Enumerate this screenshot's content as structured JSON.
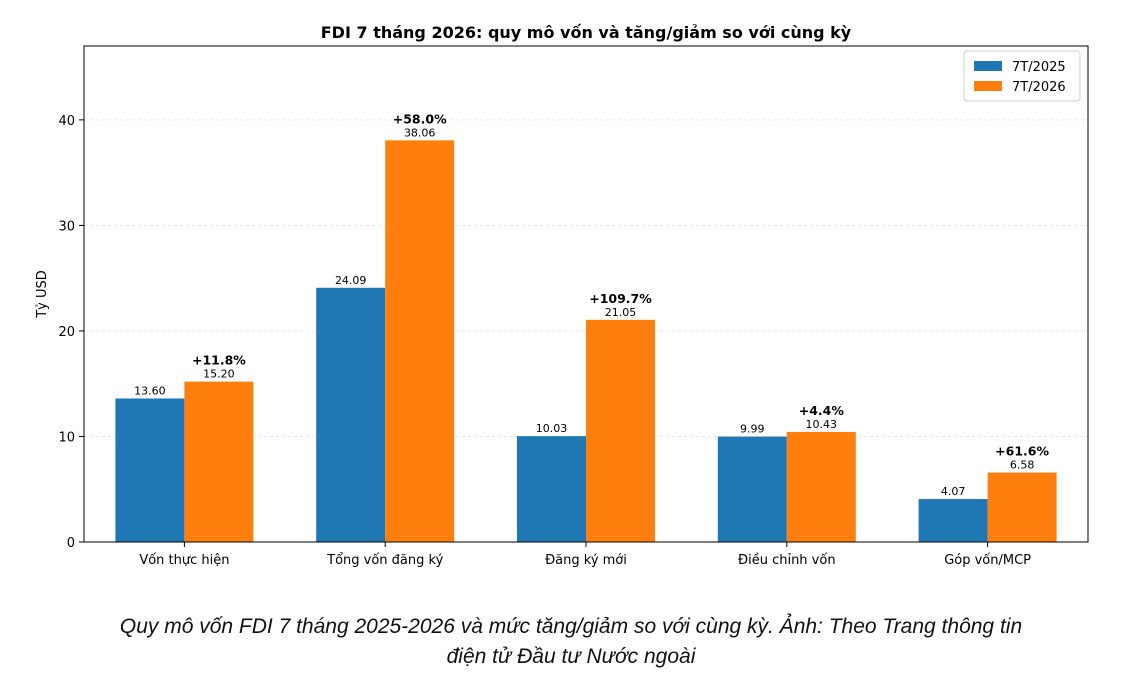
{
  "chart_data": {
    "type": "bar",
    "title": "FDI 7 tháng 2026: quy mô vốn và tăng/giảm so với cùng kỳ",
    "xlabel": "",
    "ylabel": "Tỷ USD",
    "ylim": [
      0,
      47
    ],
    "yticks": [
      0,
      10,
      20,
      30,
      40
    ],
    "grid": true,
    "legend_position": "top-right",
    "categories": [
      "Vốn thực hiện",
      "Tổng vốn đăng ký",
      "Đăng ký mới",
      "Điều chỉnh vốn",
      "Góp vốn/MCP"
    ],
    "series": [
      {
        "name": "7T/2025",
        "color": "#1f77b4",
        "values": [
          13.6,
          24.09,
          10.03,
          9.99,
          4.07
        ],
        "labels": [
          "13.60",
          "24.09",
          "10.03",
          "9.99",
          "4.07"
        ]
      },
      {
        "name": "7T/2026",
        "color": "#ff7f0e",
        "values": [
          15.2,
          38.06,
          21.05,
          10.43,
          6.58
        ],
        "labels": [
          "15.20",
          "38.06",
          "21.05",
          "10.43",
          "6.58"
        ]
      }
    ],
    "change_labels": [
      "+11.8%",
      "+58.0%",
      "+109.7%",
      "+4.4%",
      "+61.6%"
    ]
  },
  "caption": {
    "line1": "Quy mô vốn FDI 7 tháng 2025-2026 và mức tăng/giảm so với cùng kỳ. Ảnh: Theo Trang thông tin",
    "line2": "điện tử Đầu tư Nước ngoài"
  }
}
